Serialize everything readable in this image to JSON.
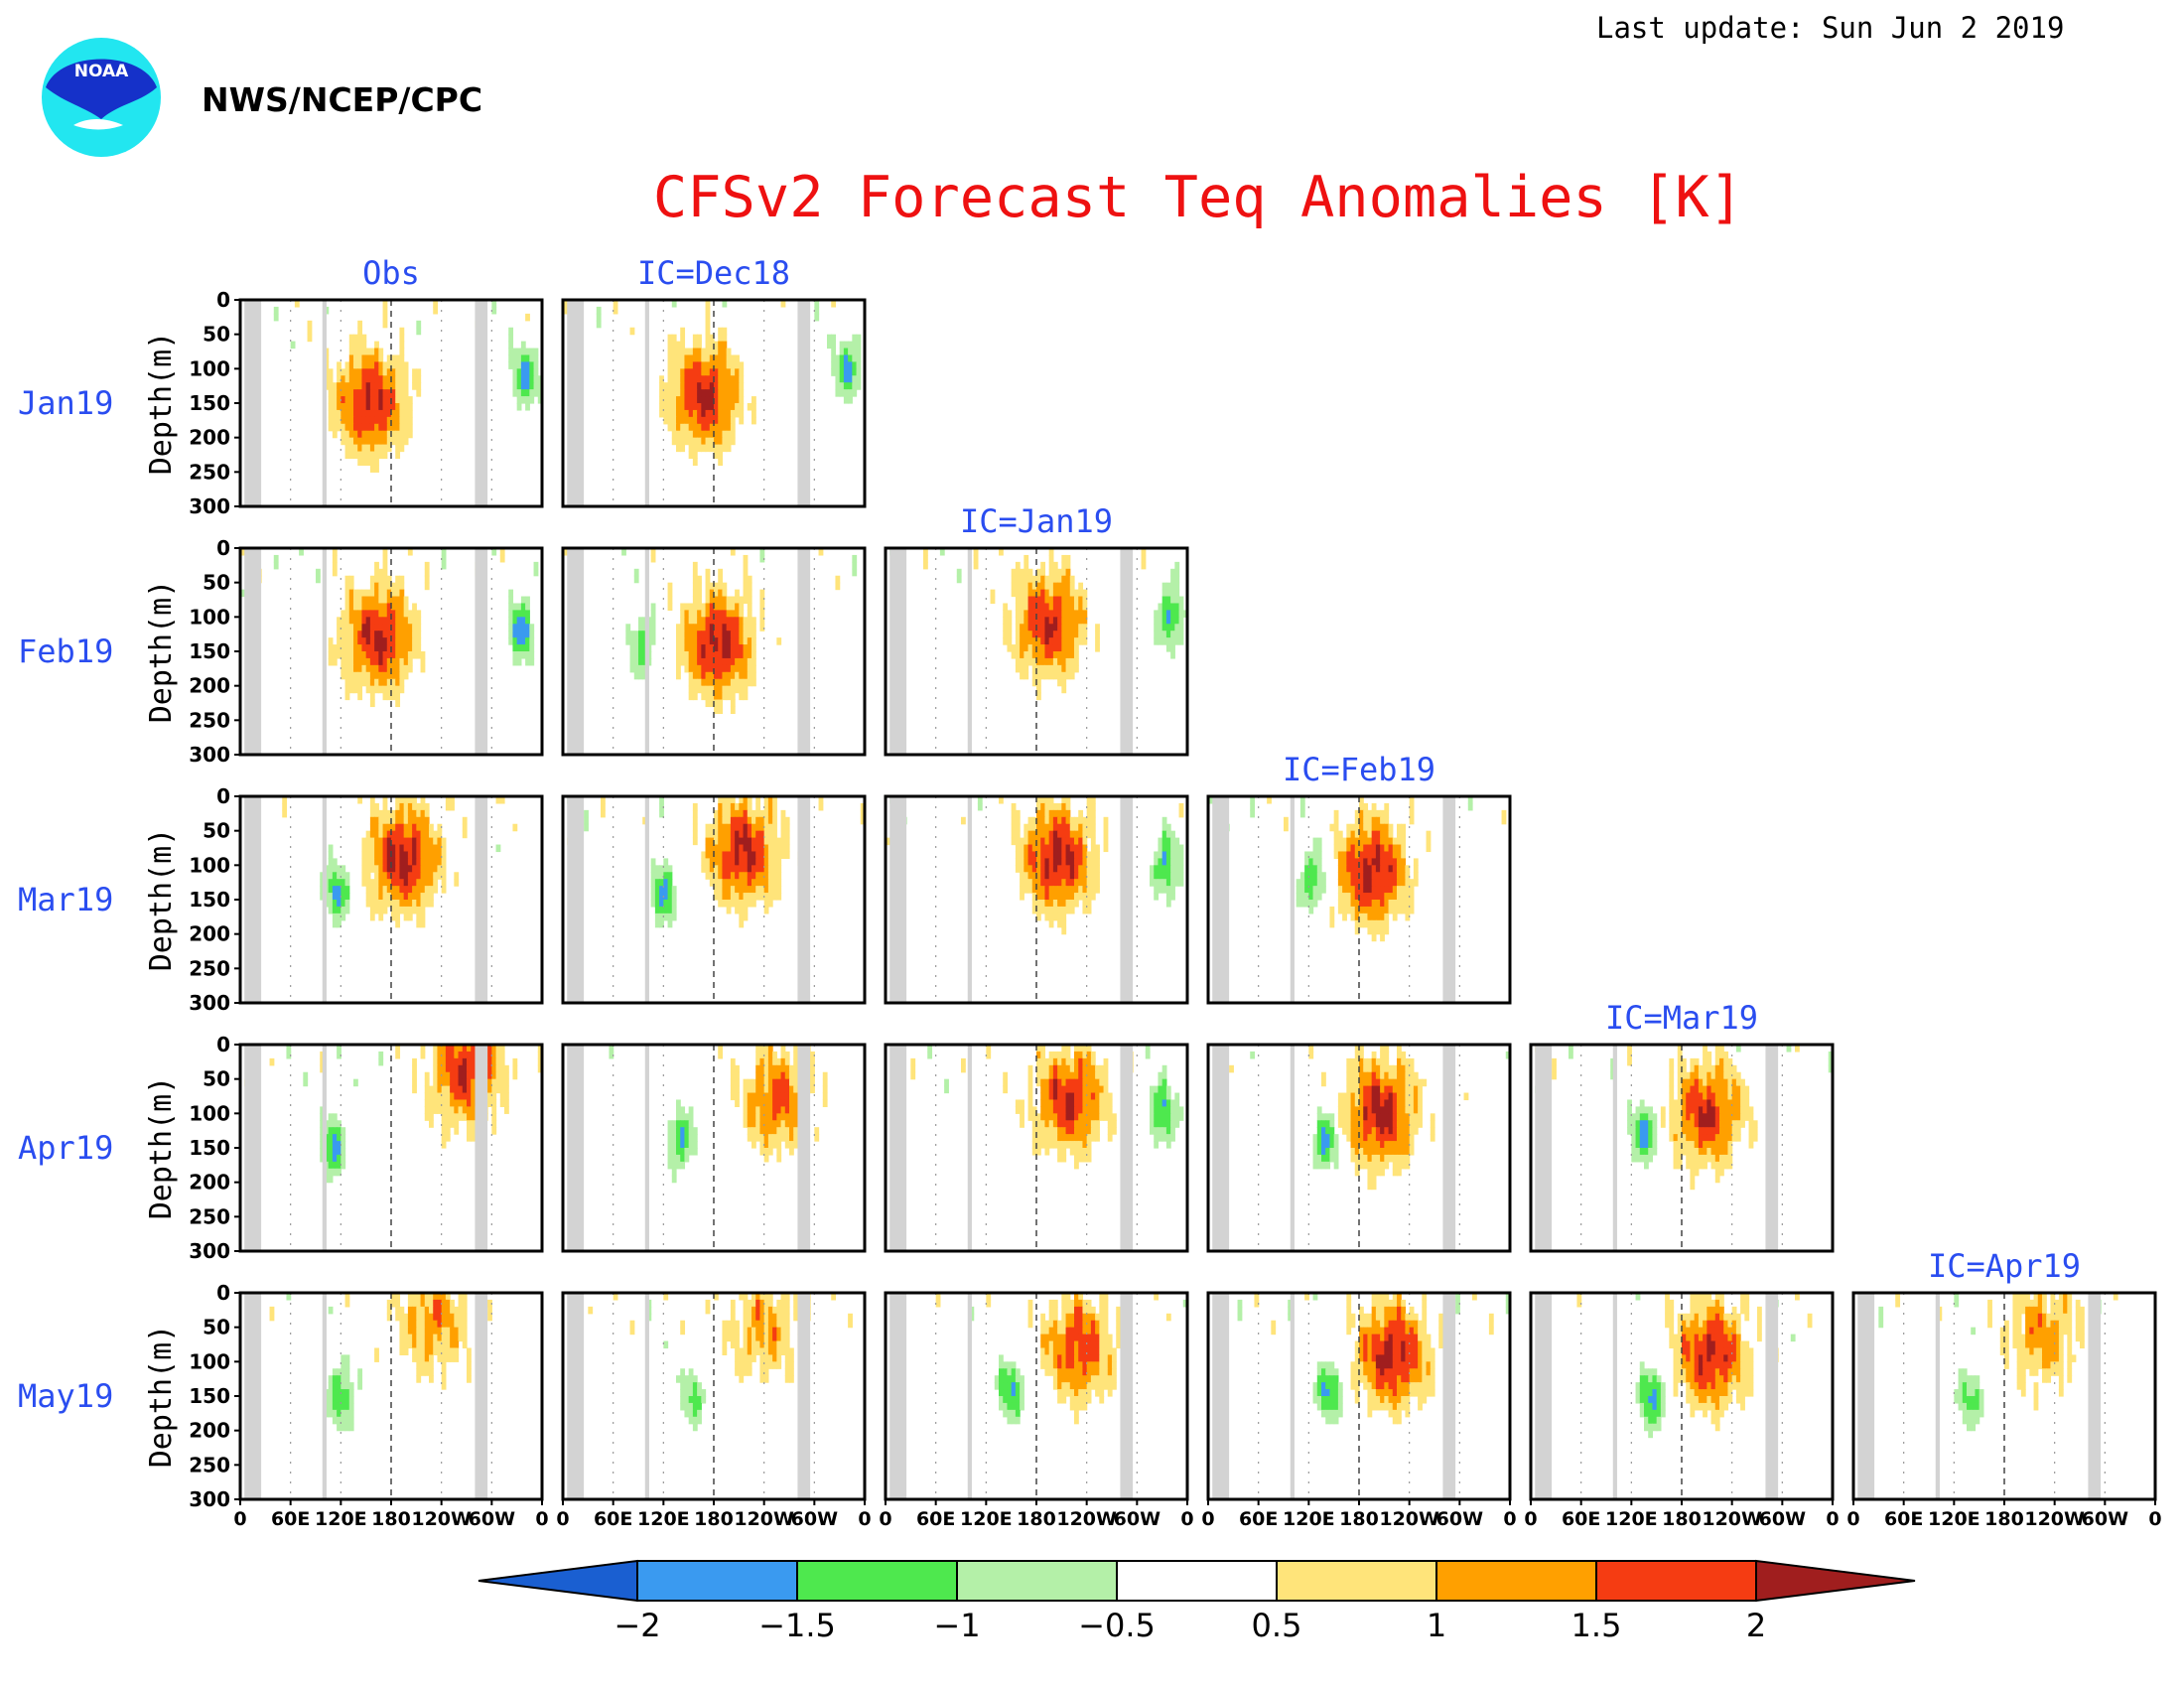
{
  "header": {
    "last_update": "Last update: Sun Jun 2 2019",
    "agency": "NWS/NCEP/CPC",
    "logo_text": "NOAA",
    "title": "CFSv2 Forecast Teq Anomalies [K]"
  },
  "colors": {
    "title": "#ee1111",
    "label_blue": "#2a4df0",
    "mask_grey": "#d3d3d3",
    "logo_outer": "#22e6f0",
    "logo_inner": "#1531c9"
  },
  "chart_data": {
    "type": "heatmap",
    "title": "CFSv2 Forecast Teq Anomalies [K]",
    "columns": [
      "Obs",
      "IC=Dec18",
      "IC=Jan19",
      "IC=Feb19",
      "IC=Mar19",
      "IC=Apr19"
    ],
    "rows": [
      "Jan19",
      "Feb19",
      "Mar19",
      "Apr19",
      "May19"
    ],
    "ylabel": "Depth(m)",
    "yticks": [
      0,
      50,
      100,
      150,
      200,
      250,
      300
    ],
    "ylim": [
      300,
      0
    ],
    "xticks": [
      "0",
      "60E",
      "120E",
      "180",
      "120W",
      "60W",
      "0"
    ],
    "xlim": [
      0,
      360
    ],
    "levels": [
      -2,
      -1.5,
      -1,
      -0.5,
      0.5,
      1,
      1.5,
      2
    ],
    "level_labels": [
      "−2",
      "−1.5",
      "−1",
      "−0.5",
      "0.5",
      "1",
      "1.5",
      "2"
    ],
    "palette": [
      "#1a5fd1",
      "#3a9af0",
      "#4ee84e",
      "#b4f0a8",
      "#ffffff",
      "#ffe47a",
      "#ffa000",
      "#f53c12",
      "#a01e1e"
    ],
    "land_mask_lon": [
      [
        5,
        25
      ],
      [
        98,
        103
      ],
      [
        280,
        295
      ]
    ],
    "panels": [
      {
        "row": 0,
        "col": 0,
        "warm_core_lon": 155,
        "warm_core_depth": 150,
        "warm_peak": 2.1,
        "cold_core_lon": 340,
        "cold_core_depth": 110,
        "cold_peak": -1.6
      },
      {
        "row": 0,
        "col": 1,
        "warm_core_lon": 170,
        "warm_core_depth": 140,
        "warm_peak": 2.1,
        "cold_core_lon": 340,
        "cold_core_depth": 100,
        "cold_peak": -1.5
      },
      {
        "row": 1,
        "col": 0,
        "warm_core_lon": 165,
        "warm_core_depth": 130,
        "warm_peak": 2.1,
        "cold_core_lon": 335,
        "cold_core_depth": 120,
        "cold_peak": -1.7
      },
      {
        "row": 1,
        "col": 1,
        "warm_core_lon": 185,
        "warm_core_depth": 140,
        "warm_peak": 2.2,
        "cold_core_lon": 95,
        "cold_core_depth": 140,
        "cold_peak": -1.3
      },
      {
        "row": 1,
        "col": 2,
        "warm_core_lon": 195,
        "warm_core_depth": 110,
        "warm_peak": 2.0,
        "cold_core_lon": 340,
        "cold_core_depth": 100,
        "cold_peak": -1.6
      },
      {
        "row": 2,
        "col": 0,
        "warm_core_lon": 195,
        "warm_core_depth": 90,
        "warm_peak": 2.2,
        "cold_core_lon": 115,
        "cold_core_depth": 140,
        "cold_peak": -1.6
      },
      {
        "row": 2,
        "col": 1,
        "warm_core_lon": 215,
        "warm_core_depth": 80,
        "warm_peak": 2.1,
        "cold_core_lon": 120,
        "cold_core_depth": 140,
        "cold_peak": -1.6
      },
      {
        "row": 2,
        "col": 2,
        "warm_core_lon": 205,
        "warm_core_depth": 90,
        "warm_peak": 2.2,
        "cold_core_lon": 335,
        "cold_core_depth": 100,
        "cold_peak": -1.6
      },
      {
        "row": 2,
        "col": 3,
        "warm_core_lon": 195,
        "warm_core_depth": 110,
        "warm_peak": 2.2,
        "cold_core_lon": 125,
        "cold_core_depth": 120,
        "cold_peak": -1.6
      },
      {
        "row": 3,
        "col": 0,
        "warm_core_lon": 270,
        "warm_core_depth": 40,
        "warm_peak": 2.0,
        "cold_core_lon": 110,
        "cold_core_depth": 150,
        "cold_peak": -1.6
      },
      {
        "row": 3,
        "col": 1,
        "warm_core_lon": 255,
        "warm_core_depth": 80,
        "warm_peak": 1.6,
        "cold_core_lon": 140,
        "cold_core_depth": 140,
        "cold_peak": -1.5
      },
      {
        "row": 3,
        "col": 2,
        "warm_core_lon": 220,
        "warm_core_depth": 80,
        "warm_peak": 2.0,
        "cold_core_lon": 330,
        "cold_core_depth": 100,
        "cold_peak": -1.6
      },
      {
        "row": 3,
        "col": 3,
        "warm_core_lon": 205,
        "warm_core_depth": 100,
        "warm_peak": 2.2,
        "cold_core_lon": 140,
        "cold_core_depth": 140,
        "cold_peak": -1.7
      },
      {
        "row": 3,
        "col": 4,
        "warm_core_lon": 210,
        "warm_core_depth": 100,
        "warm_peak": 2.0,
        "cold_core_lon": 135,
        "cold_core_depth": 130,
        "cold_peak": -1.7
      },
      {
        "row": 4,
        "col": 0,
        "warm_core_lon": 230,
        "warm_core_depth": 40,
        "warm_peak": 1.3,
        "cold_core_lon": 120,
        "cold_core_depth": 150,
        "cold_peak": -1.5
      },
      {
        "row": 4,
        "col": 1,
        "warm_core_lon": 240,
        "warm_core_depth": 50,
        "warm_peak": 1.2,
        "cold_core_lon": 155,
        "cold_core_depth": 150,
        "cold_peak": -1.1
      },
      {
        "row": 4,
        "col": 2,
        "warm_core_lon": 230,
        "warm_core_depth": 80,
        "warm_peak": 1.8,
        "cold_core_lon": 150,
        "cold_core_depth": 140,
        "cold_peak": -1.6
      },
      {
        "row": 4,
        "col": 3,
        "warm_core_lon": 220,
        "warm_core_depth": 90,
        "warm_peak": 2.2,
        "cold_core_lon": 145,
        "cold_core_depth": 140,
        "cold_peak": -1.7
      },
      {
        "row": 4,
        "col": 4,
        "warm_core_lon": 215,
        "warm_core_depth": 90,
        "warm_peak": 2.1,
        "cold_core_lon": 145,
        "cold_core_depth": 150,
        "cold_peak": -1.8
      },
      {
        "row": 4,
        "col": 5,
        "warm_core_lon": 225,
        "warm_core_depth": 60,
        "warm_peak": 1.3,
        "cold_core_lon": 140,
        "cold_core_depth": 150,
        "cold_peak": -1.2
      }
    ]
  }
}
